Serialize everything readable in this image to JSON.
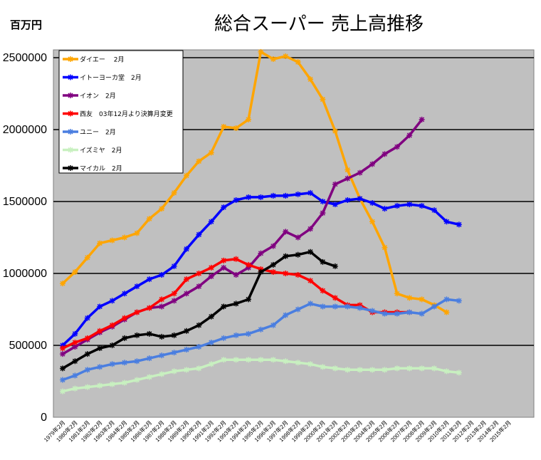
{
  "chart_data": {
    "type": "line",
    "title": "総合スーパー 売上高推移",
    "ylabel": "百万円",
    "xlabel": "",
    "ylim": [
      0,
      2500000
    ],
    "yticks": [
      0,
      500000,
      1000000,
      1500000,
      2000000,
      2500000
    ],
    "ytick_labels": [
      "0",
      "500000",
      "1000000",
      "1500000",
      "2000000",
      "2500000"
    ],
    "grid": true,
    "plot_background": "#c0c0c0",
    "legend_position": "top-left",
    "categories": [
      "1979年2月",
      "1980年2月",
      "1981年2月",
      "1982年2月",
      "1983年2月",
      "1984年2月",
      "1985年2月",
      "1986年2月",
      "1987年2月",
      "1988年2月",
      "1989年2月",
      "1990年2月",
      "1991年2月",
      "1992年2月",
      "1993年2月",
      "1994年2月",
      "1995年2月",
      "1996年2月",
      "1997年2月",
      "1998年2月",
      "1999年2月",
      "2000年2月",
      "2001年2月",
      "2002年2月",
      "2003年2月",
      "2004年2月",
      "2005年2月",
      "2006年2月",
      "2007年2月",
      "2008年2月",
      "2009年2月",
      "2010年2月",
      "2011年2月",
      "2012年2月",
      "2013年2月",
      "2014年2月",
      "2015年2月"
    ],
    "series": [
      {
        "name": "ダイエー　 2月",
        "color": "#ffa500",
        "marker": "star",
        "values": [
          930000,
          1010000,
          1110000,
          1210000,
          1230000,
          1250000,
          1280000,
          1380000,
          1450000,
          1560000,
          1680000,
          1780000,
          1840000,
          2020000,
          2010000,
          2070000,
          2540000,
          2490000,
          2510000,
          2470000,
          2350000,
          2210000,
          1990000,
          1720000,
          1520000,
          1360000,
          1180000,
          860000,
          830000,
          820000,
          780000,
          730000,
          null,
          null,
          null,
          null,
          null
        ]
      },
      {
        "name": "イトーヨーカ堂　2月",
        "color": "#0000ff",
        "marker": "star",
        "values": [
          500000,
          580000,
          690000,
          770000,
          810000,
          860000,
          910000,
          960000,
          990000,
          1050000,
          1170000,
          1270000,
          1360000,
          1460000,
          1510000,
          1530000,
          1530000,
          1540000,
          1540000,
          1550000,
          1560000,
          1500000,
          1480000,
          1510000,
          1520000,
          1490000,
          1450000,
          1470000,
          1480000,
          1470000,
          1440000,
          1360000,
          1340000,
          null,
          null,
          null,
          null
        ]
      },
      {
        "name": "イオン　2月",
        "color": "#800080",
        "marker": "star",
        "values": [
          440000,
          490000,
          540000,
          590000,
          630000,
          680000,
          730000,
          760000,
          770000,
          810000,
          860000,
          910000,
          980000,
          1040000,
          990000,
          1040000,
          1140000,
          1190000,
          1290000,
          1250000,
          1310000,
          1420000,
          1620000,
          1660000,
          1700000,
          1760000,
          1830000,
          1880000,
          1960000,
          2070000,
          null,
          null,
          null,
          null,
          null,
          null,
          null
        ]
      },
      {
        "name": "西友　03年12月より決算月変更",
        "color": "#ff0000",
        "marker": "star",
        "values": [
          480000,
          520000,
          550000,
          600000,
          640000,
          690000,
          730000,
          760000,
          820000,
          860000,
          960000,
          1000000,
          1040000,
          1090000,
          1100000,
          1060000,
          1030000,
          1010000,
          1000000,
          990000,
          950000,
          880000,
          830000,
          780000,
          780000,
          730000,
          730000,
          730000,
          730000,
          null,
          null,
          null,
          null,
          null,
          null,
          null,
          null
        ]
      },
      {
        "name": "ユニー　2月",
        "color": "#4a7ee0",
        "marker": "star",
        "values": [
          260000,
          290000,
          330000,
          350000,
          370000,
          380000,
          390000,
          410000,
          430000,
          450000,
          470000,
          490000,
          520000,
          550000,
          570000,
          580000,
          610000,
          640000,
          710000,
          750000,
          790000,
          770000,
          770000,
          770000,
          760000,
          740000,
          720000,
          720000,
          730000,
          720000,
          770000,
          820000,
          810000,
          null,
          null,
          null,
          null
        ]
      },
      {
        "name": "イズミヤ　2月",
        "color": "#c8f0c0",
        "marker": "star",
        "values": [
          180000,
          200000,
          210000,
          220000,
          230000,
          240000,
          260000,
          280000,
          300000,
          320000,
          330000,
          340000,
          370000,
          400000,
          400000,
          400000,
          400000,
          400000,
          390000,
          380000,
          370000,
          350000,
          340000,
          330000,
          330000,
          330000,
          330000,
          340000,
          340000,
          340000,
          340000,
          320000,
          310000,
          null,
          null,
          null,
          null
        ]
      },
      {
        "name": "マイカル　2月",
        "color": "#000000",
        "marker": "star",
        "values": [
          340000,
          390000,
          440000,
          480000,
          500000,
          550000,
          570000,
          580000,
          560000,
          570000,
          600000,
          640000,
          700000,
          770000,
          790000,
          820000,
          1010000,
          1060000,
          1120000,
          1130000,
          1150000,
          1080000,
          1050000,
          null,
          null,
          null,
          null,
          null,
          null,
          null,
          null,
          null,
          null,
          null,
          null,
          null,
          null
        ]
      }
    ]
  }
}
